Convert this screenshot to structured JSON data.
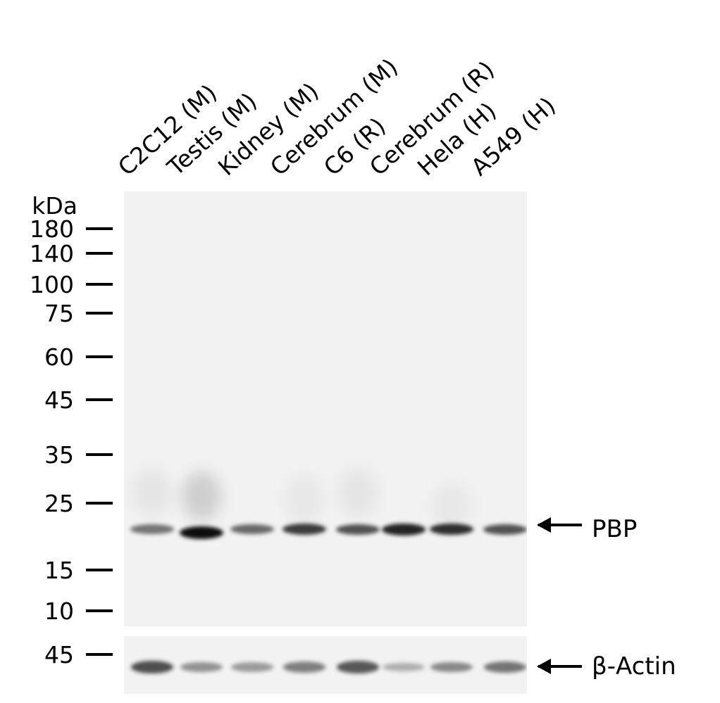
{
  "lanes": [
    "C2C12 (M)",
    "Testis (M)",
    "Kidney (M)",
    "Cerebrum (M)",
    "C6 (R)",
    "Cerebrum (R)",
    "Hela (H)",
    "A549 (H)"
  ],
  "unit_label": "kDa",
  "markers": [
    "180",
    "140",
    "100",
    "75",
    "60",
    "45",
    "35",
    "25",
    "15",
    "10"
  ],
  "loading_marker": "45",
  "targets": {
    "main": "PBP",
    "loading": "β-Actin"
  },
  "band_intensity": {
    "PBP": [
      0.55,
      1.0,
      0.6,
      0.8,
      0.7,
      0.9,
      0.85,
      0.7
    ],
    "beta_actin": [
      0.85,
      0.5,
      0.45,
      0.6,
      0.8,
      0.35,
      0.55,
      0.65
    ]
  }
}
